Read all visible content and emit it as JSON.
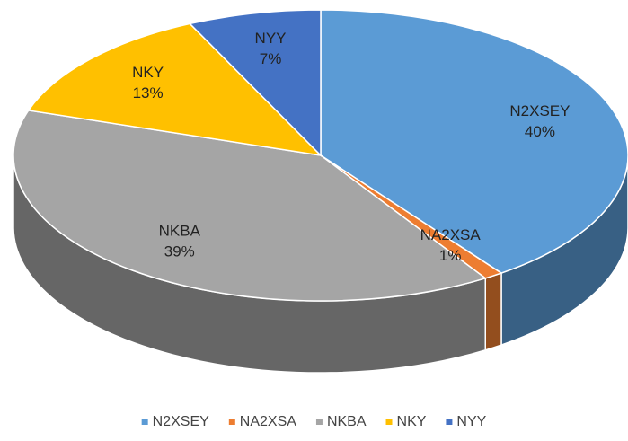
{
  "chart_data": {
    "type": "pie",
    "categories": [
      "N2XSEY",
      "NA2XSA",
      "NKBA",
      "NKY",
      "NYY"
    ],
    "values": [
      40,
      1,
      39,
      13,
      7
    ],
    "value_labels": [
      "40%",
      "1%",
      "39%",
      "13%",
      "7%"
    ],
    "colors": [
      "#5b9bd5",
      "#ed7d31",
      "#a5a5a5",
      "#ffc000",
      "#4472c4"
    ],
    "legend": "bottom"
  }
}
